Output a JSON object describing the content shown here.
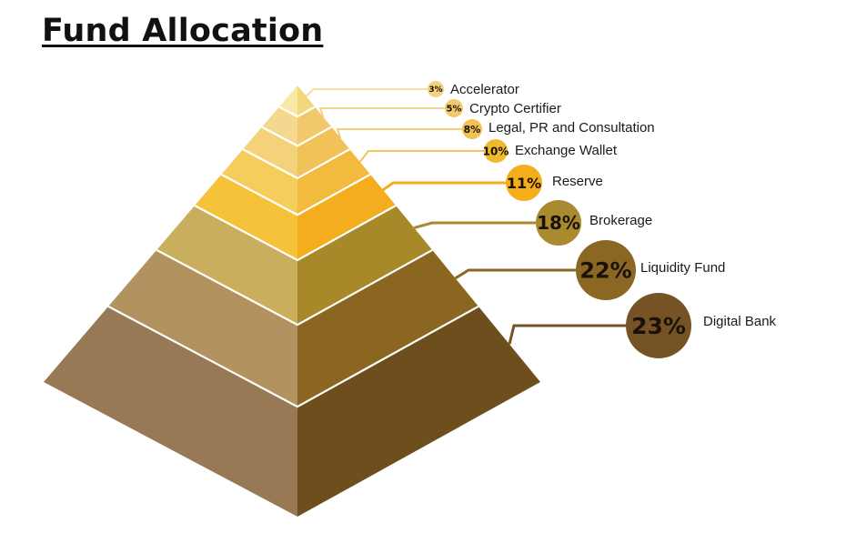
{
  "title": "Fund Allocation",
  "chart_data": {
    "type": "pyramid",
    "title": "Fund Allocation",
    "unit": "%",
    "layers": [
      {
        "label": "Accelerator",
        "value": 3,
        "value_text": "3%"
      },
      {
        "label": "Crypto Certifier",
        "value": 5,
        "value_text": "5%"
      },
      {
        "label": "Legal, PR and Consultation",
        "value": 8,
        "value_text": "8%"
      },
      {
        "label": "Exchange Wallet",
        "value": 10,
        "value_text": "10%"
      },
      {
        "label": "Reserve",
        "value": 11,
        "value_text": "11%"
      },
      {
        "label": "Brokerage",
        "value": 18,
        "value_text": "18%"
      },
      {
        "label": "Liquidity Fund",
        "value": 22,
        "value_text": "22%"
      },
      {
        "label": "Digital Bank",
        "value": 23,
        "value_text": "23%"
      }
    ],
    "colors": {
      "left_faces": [
        "#f9e9a6",
        "#f5d890",
        "#f4d27a",
        "#f4cd5d",
        "#f5c23a",
        "#c9ae5e",
        "#b2925f",
        "#987956"
      ],
      "right_faces": [
        "#f3d879",
        "#f2c86c",
        "#f1c258",
        "#f2bb3d",
        "#f3ad1e",
        "#a7892a",
        "#8a6620",
        "#6f4e1e"
      ],
      "bubbles": [
        "#f3d37d",
        "#f1cb6c",
        "#f0c052",
        "#f0b82e",
        "#f4ad1b",
        "#a98a2e",
        "#8a6823",
        "#755324"
      ],
      "leader_lines": [
        "#f3dc92",
        "#f1d17d",
        "#f0c966",
        "#f0bf44",
        "#f4ad1b",
        "#a98a2e",
        "#8a6823",
        "#755324"
      ]
    }
  }
}
